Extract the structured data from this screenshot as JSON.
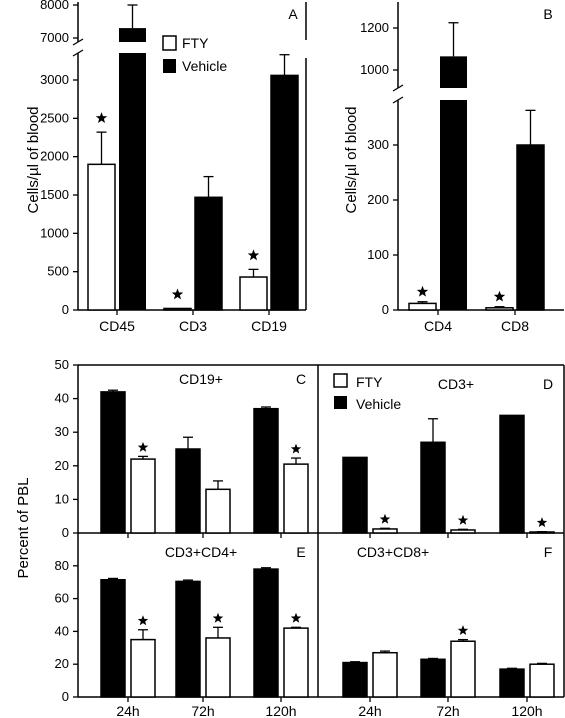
{
  "legend": {
    "fty": "FTY",
    "vehicle": "Vehicle"
  },
  "colors": {
    "vehicle": "#000000",
    "fty": "#ffffff",
    "stroke": "#000000"
  },
  "chart_data": [
    {
      "id": "A",
      "type": "bar",
      "panel_label": "A",
      "ylabel": "Cells/µl of blood",
      "categories": [
        "CD45",
        "CD3",
        "CD19"
      ],
      "series": [
        {
          "name": "FTY",
          "values": [
            1900,
            20,
            430
          ],
          "errors": [
            420,
            0,
            100
          ],
          "significant": [
            true,
            true,
            true
          ]
        },
        {
          "name": "Vehicle",
          "values": [
            7300,
            1470,
            3060
          ],
          "errors": [
            700,
            270,
            270
          ],
          "significant": [
            false,
            false,
            false
          ]
        }
      ],
      "ylim": [
        0,
        3500
      ],
      "ylim_upper": [
        7000,
        8000
      ],
      "ticks_lower": [
        "0",
        "500",
        "1000",
        "1500",
        "2000",
        "2500",
        "3000"
      ],
      "ticks_upper": [
        "7000",
        "8000"
      ],
      "axis_break": true,
      "legend_position": "top"
    },
    {
      "id": "B",
      "type": "bar",
      "panel_label": "B",
      "ylabel": "Cells/µl of blood",
      "categories": [
        "CD4",
        "CD8"
      ],
      "series": [
        {
          "name": "FTY",
          "values": [
            12,
            4
          ],
          "errors": [
            3,
            2
          ],
          "significant": [
            true,
            true
          ]
        },
        {
          "name": "Vehicle",
          "values": [
            1065,
            300
          ],
          "errors": [
            160,
            63
          ],
          "significant": [
            false,
            false
          ]
        }
      ],
      "ylim": [
        0,
        370
      ],
      "ylim_upper": [
        1000,
        1300
      ],
      "ticks_lower": [
        "0",
        "100",
        "200",
        "300"
      ],
      "ticks_upper": [
        "1000",
        "1200"
      ],
      "axis_break": true
    },
    {
      "id": "C",
      "type": "bar",
      "panel_label": "C",
      "title": "CD19+",
      "ylabel": "Percent of PBL",
      "categories": [
        "24h",
        "72h",
        "120h"
      ],
      "series": [
        {
          "name": "Vehicle",
          "values": [
            42,
            25,
            37
          ],
          "errors": [
            0.5,
            3.5,
            0.5
          ],
          "significant": [
            false,
            false,
            false
          ]
        },
        {
          "name": "FTY",
          "values": [
            22,
            13,
            20.5
          ],
          "errors": [
            0.8,
            2.5,
            1.8
          ],
          "significant": [
            true,
            false,
            true
          ]
        }
      ],
      "ylim": [
        0,
        50
      ],
      "ticks": [
        "0",
        "10",
        "20",
        "30",
        "40",
        "50"
      ],
      "legend_position": "top-right"
    },
    {
      "id": "D",
      "type": "bar",
      "panel_label": "D",
      "title": "CD3+",
      "categories": [
        "24h",
        "72h",
        "120h"
      ],
      "series": [
        {
          "name": "Vehicle",
          "values": [
            22.5,
            27,
            35
          ],
          "errors": [
            0.3,
            7,
            0.3
          ],
          "significant": [
            false,
            false,
            false
          ]
        },
        {
          "name": "FTY",
          "values": [
            1.2,
            0.9,
            0.3
          ],
          "errors": [
            0.2,
            0.2,
            0.1
          ],
          "significant": [
            true,
            true,
            true
          ]
        }
      ],
      "ylim": [
        0,
        50
      ]
    },
    {
      "id": "E",
      "type": "bar",
      "panel_label": "E",
      "title": "CD3+CD4+",
      "categories": [
        "24h",
        "72h",
        "120h"
      ],
      "series": [
        {
          "name": "Vehicle",
          "values": [
            71.5,
            70.5,
            78
          ],
          "errors": [
            0.8,
            0.8,
            0.8
          ],
          "significant": [
            false,
            false,
            false
          ]
        },
        {
          "name": "FTY",
          "values": [
            35,
            36,
            42
          ],
          "errors": [
            6,
            6.5,
            0.5
          ],
          "significant": [
            true,
            true,
            true
          ]
        }
      ],
      "ylim": [
        0,
        100
      ],
      "ticks": [
        "0",
        "20",
        "40",
        "60",
        "80"
      ]
    },
    {
      "id": "F",
      "type": "bar",
      "panel_label": "F",
      "title": "CD3+CD8+",
      "categories": [
        "24h",
        "72h",
        "120h"
      ],
      "series": [
        {
          "name": "Vehicle",
          "values": [
            21,
            23,
            17
          ],
          "errors": [
            0.5,
            0.5,
            0.5
          ],
          "significant": [
            false,
            false,
            false
          ]
        },
        {
          "name": "FTY",
          "values": [
            27,
            34,
            20
          ],
          "errors": [
            1,
            1,
            0.5
          ],
          "significant": [
            false,
            true,
            false
          ]
        }
      ],
      "ylim": [
        0,
        100
      ]
    }
  ]
}
